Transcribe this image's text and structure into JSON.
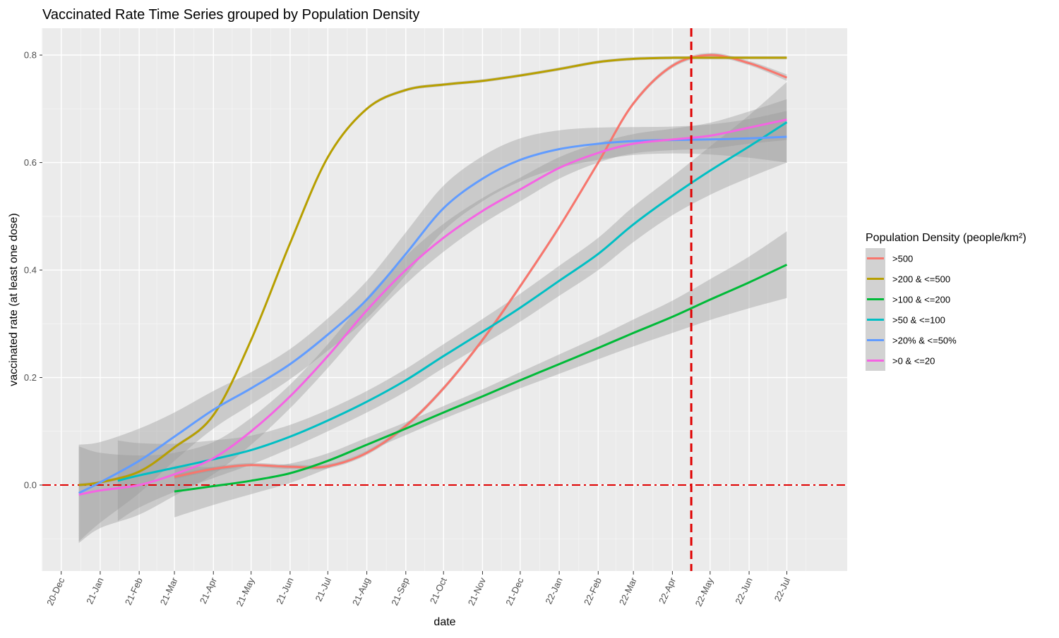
{
  "chart_data": {
    "type": "line",
    "title": "Vaccinated Rate Time Series grouped by Population Density",
    "xlabel": "date",
    "ylabel": "vaccinated rate (at least one dose)",
    "x_ticks": [
      "20-Dec",
      "21-Jan",
      "21-Feb",
      "21-Mar",
      "21-Apr",
      "21-May",
      "21-Jun",
      "21-Jul",
      "21-Aug",
      "21-Sep",
      "21-Oct",
      "21-Nov",
      "21-Dec",
      "22-Jan",
      "22-Feb",
      "22-Mar",
      "22-Apr",
      "22-May",
      "22-Jun",
      "22-Jul"
    ],
    "x_range": [
      "2020-11-16",
      "2022-08-18"
    ],
    "y_ticks": [
      "0.0",
      "0.2",
      "0.4",
      "0.6",
      "0.8"
    ],
    "y_range": [
      -0.16,
      0.85
    ],
    "grid": true,
    "legend": {
      "title": "Population Density (people/km²)",
      "placement": "right"
    },
    "reference_lines": [
      {
        "type": "horizontal",
        "y": 0,
        "style": "dashdot",
        "color": "#e00000"
      },
      {
        "type": "vertical",
        "x": "2022-04-16",
        "style": "dashed",
        "color": "#e00000"
      }
    ],
    "series": [
      {
        "name": ">500",
        "color": "#F8766D",
        "x": [
          "2021-03-01",
          "2021-04-01",
          "2021-05-01",
          "2021-06-01",
          "2021-07-01",
          "2021-08-01",
          "2021-09-01",
          "2021-10-01",
          "2021-11-01",
          "2021-12-01",
          "2022-01-01",
          "2022-02-01",
          "2022-03-01",
          "2022-04-01",
          "2022-05-01",
          "2022-06-01",
          "2022-07-01"
        ],
        "y": [
          0.015,
          0.03,
          0.037,
          0.034,
          0.035,
          0.06,
          0.11,
          0.18,
          0.27,
          0.37,
          0.48,
          0.6,
          0.71,
          0.78,
          0.8,
          0.785,
          0.758
        ],
        "band": [
          0.004,
          0.004,
          0.004,
          0.004,
          0.004,
          0.004,
          0.004,
          0.004,
          0.004,
          0.004,
          0.004,
          0.004,
          0.004,
          0.004,
          0.004,
          0.004,
          0.006
        ]
      },
      {
        "name": ">200 & <=500",
        "color": "#B79F00",
        "x": [
          "2020-12-15",
          "2021-01-01",
          "2021-02-01",
          "2021-03-01",
          "2021-04-01",
          "2021-05-01",
          "2021-06-01",
          "2021-07-01",
          "2021-08-01",
          "2021-09-01",
          "2021-10-01",
          "2021-11-01",
          "2021-12-01",
          "2022-01-01",
          "2022-02-01",
          "2022-03-01",
          "2022-04-01",
          "2022-05-01",
          "2022-06-01",
          "2022-07-01"
        ],
        "y": [
          0.0,
          0.005,
          0.025,
          0.07,
          0.13,
          0.27,
          0.45,
          0.61,
          0.7,
          0.735,
          0.745,
          0.752,
          0.762,
          0.774,
          0.787,
          0.793,
          0.795,
          0.795,
          0.795,
          0.795
        ],
        "band": [
          0.003,
          0.003,
          0.003,
          0.003,
          0.003,
          0.003,
          0.003,
          0.003,
          0.003,
          0.003,
          0.003,
          0.003,
          0.003,
          0.003,
          0.003,
          0.003,
          0.003,
          0.003,
          0.003,
          0.003
        ]
      },
      {
        "name": ">100 & <=200",
        "color": "#00BA38",
        "x": [
          "2021-03-01",
          "2021-04-01",
          "2021-05-01",
          "2021-06-01",
          "2021-07-01",
          "2021-08-01",
          "2021-09-01",
          "2021-10-01",
          "2021-11-01",
          "2021-12-01",
          "2022-01-01",
          "2022-02-01",
          "2022-03-01",
          "2022-04-01",
          "2022-05-01",
          "2022-06-01",
          "2022-07-01"
        ],
        "y": [
          -0.012,
          -0.002,
          0.008,
          0.022,
          0.045,
          0.075,
          0.105,
          0.135,
          0.165,
          0.195,
          0.225,
          0.255,
          0.283,
          0.313,
          0.345,
          0.377,
          0.41
        ],
        "band": [
          0.048,
          0.035,
          0.025,
          0.018,
          0.014,
          0.013,
          0.012,
          0.012,
          0.013,
          0.015,
          0.018,
          0.021,
          0.025,
          0.03,
          0.038,
          0.048,
          0.062
        ]
      },
      {
        "name": ">50 & <=100",
        "color": "#00BFC4",
        "x": [
          "2021-01-15",
          "2021-02-01",
          "2021-03-01",
          "2021-04-01",
          "2021-05-01",
          "2021-06-01",
          "2021-07-01",
          "2021-08-01",
          "2021-09-01",
          "2021-10-01",
          "2021-11-01",
          "2021-12-01",
          "2022-01-01",
          "2022-02-01",
          "2022-03-01",
          "2022-04-01",
          "2022-05-01",
          "2022-06-01",
          "2022-07-01"
        ],
        "y": [
          0.008,
          0.018,
          0.032,
          0.048,
          0.065,
          0.09,
          0.12,
          0.155,
          0.195,
          0.24,
          0.285,
          0.33,
          0.38,
          0.43,
          0.485,
          0.538,
          0.585,
          0.63,
          0.675
        ],
        "band": [
          0.075,
          0.06,
          0.045,
          0.035,
          0.027,
          0.022,
          0.02,
          0.02,
          0.021,
          0.022,
          0.024,
          0.026,
          0.028,
          0.03,
          0.033,
          0.036,
          0.045,
          0.058,
          0.075
        ]
      },
      {
        "name": ">20% & <=50%",
        "color": "#619CFF",
        "x": [
          "2020-12-15",
          "2021-01-01",
          "2021-02-01",
          "2021-03-01",
          "2021-04-01",
          "2021-05-01",
          "2021-06-01",
          "2021-07-01",
          "2021-08-01",
          "2021-09-01",
          "2021-10-01",
          "2021-11-01",
          "2021-12-01",
          "2022-01-01",
          "2022-02-01",
          "2022-03-01",
          "2022-04-01",
          "2022-05-01",
          "2022-06-01",
          "2022-07-01"
        ],
        "y": [
          -0.015,
          0.005,
          0.045,
          0.09,
          0.14,
          0.18,
          0.225,
          0.28,
          0.345,
          0.43,
          0.515,
          0.57,
          0.605,
          0.625,
          0.635,
          0.64,
          0.642,
          0.643,
          0.645,
          0.648
        ],
        "band": [
          0.09,
          0.075,
          0.06,
          0.045,
          0.035,
          0.03,
          0.028,
          0.03,
          0.035,
          0.04,
          0.042,
          0.042,
          0.04,
          0.035,
          0.03,
          0.026,
          0.025,
          0.028,
          0.036,
          0.048
        ]
      },
      {
        "name": ">0 & <=20",
        "color": "#F564E3",
        "x": [
          "2020-12-15",
          "2021-01-01",
          "2021-02-01",
          "2021-03-01",
          "2021-04-01",
          "2021-05-01",
          "2021-06-01",
          "2021-07-01",
          "2021-08-01",
          "2021-09-01",
          "2021-10-01",
          "2021-11-01",
          "2021-12-01",
          "2022-01-01",
          "2022-02-01",
          "2022-03-01",
          "2022-04-01",
          "2022-05-01",
          "2022-06-01",
          "2022-07-01"
        ],
        "y": [
          -0.018,
          -0.01,
          0.0,
          0.02,
          0.05,
          0.1,
          0.165,
          0.24,
          0.325,
          0.4,
          0.46,
          0.51,
          0.55,
          0.59,
          0.618,
          0.635,
          0.643,
          0.65,
          0.665,
          0.68
        ],
        "band": [
          0.09,
          0.07,
          0.055,
          0.04,
          0.03,
          0.025,
          0.022,
          0.022,
          0.024,
          0.026,
          0.026,
          0.024,
          0.022,
          0.02,
          0.018,
          0.018,
          0.02,
          0.024,
          0.03,
          0.038
        ]
      }
    ]
  }
}
